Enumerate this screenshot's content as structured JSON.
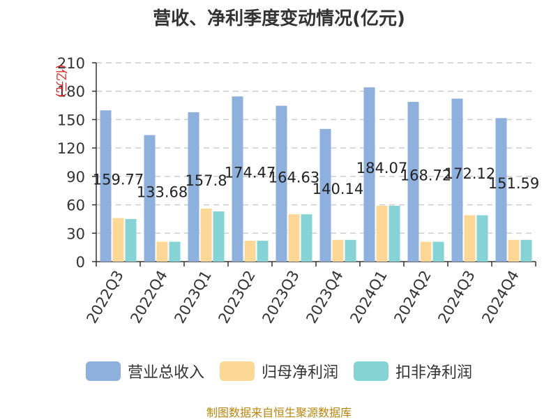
{
  "chart_data": {
    "type": "bar",
    "title": "营收、净利季度变动情况(亿元)",
    "ylabel": "(亿元)",
    "xlabel": "",
    "ylim": [
      0,
      210
    ],
    "yticks": [
      0,
      30,
      60,
      90,
      120,
      150,
      180,
      210
    ],
    "grid": true,
    "legend_position": "bottom",
    "categories": [
      "2022Q3",
      "2022Q4",
      "2023Q1",
      "2023Q2",
      "2023Q3",
      "2023Q4",
      "2024Q1",
      "2024Q2",
      "2024Q3",
      "2024Q4"
    ],
    "series": [
      {
        "name": "营业总收入",
        "color": "#8eb0dd",
        "values": [
          159.77,
          133.68,
          157.8,
          174.47,
          164.63,
          140.14,
          184.07,
          168.72,
          172.12,
          151.59
        ],
        "data_labels": [
          "159.77",
          "133.68",
          "157.8",
          "174.47",
          "164.63",
          "140.14",
          "184.07",
          "168.72",
          "172.12",
          "151.59"
        ]
      },
      {
        "name": "归母净利润",
        "color": "#fdd796",
        "values": [
          46,
          21,
          56,
          22,
          50,
          23,
          59,
          21,
          49,
          23
        ]
      },
      {
        "name": "扣非净利润",
        "color": "#86d3d6",
        "values": [
          45,
          21,
          53,
          22,
          50,
          23,
          59,
          21,
          49,
          23
        ]
      }
    ]
  },
  "source": "制图数据来自恒生聚源数据库"
}
